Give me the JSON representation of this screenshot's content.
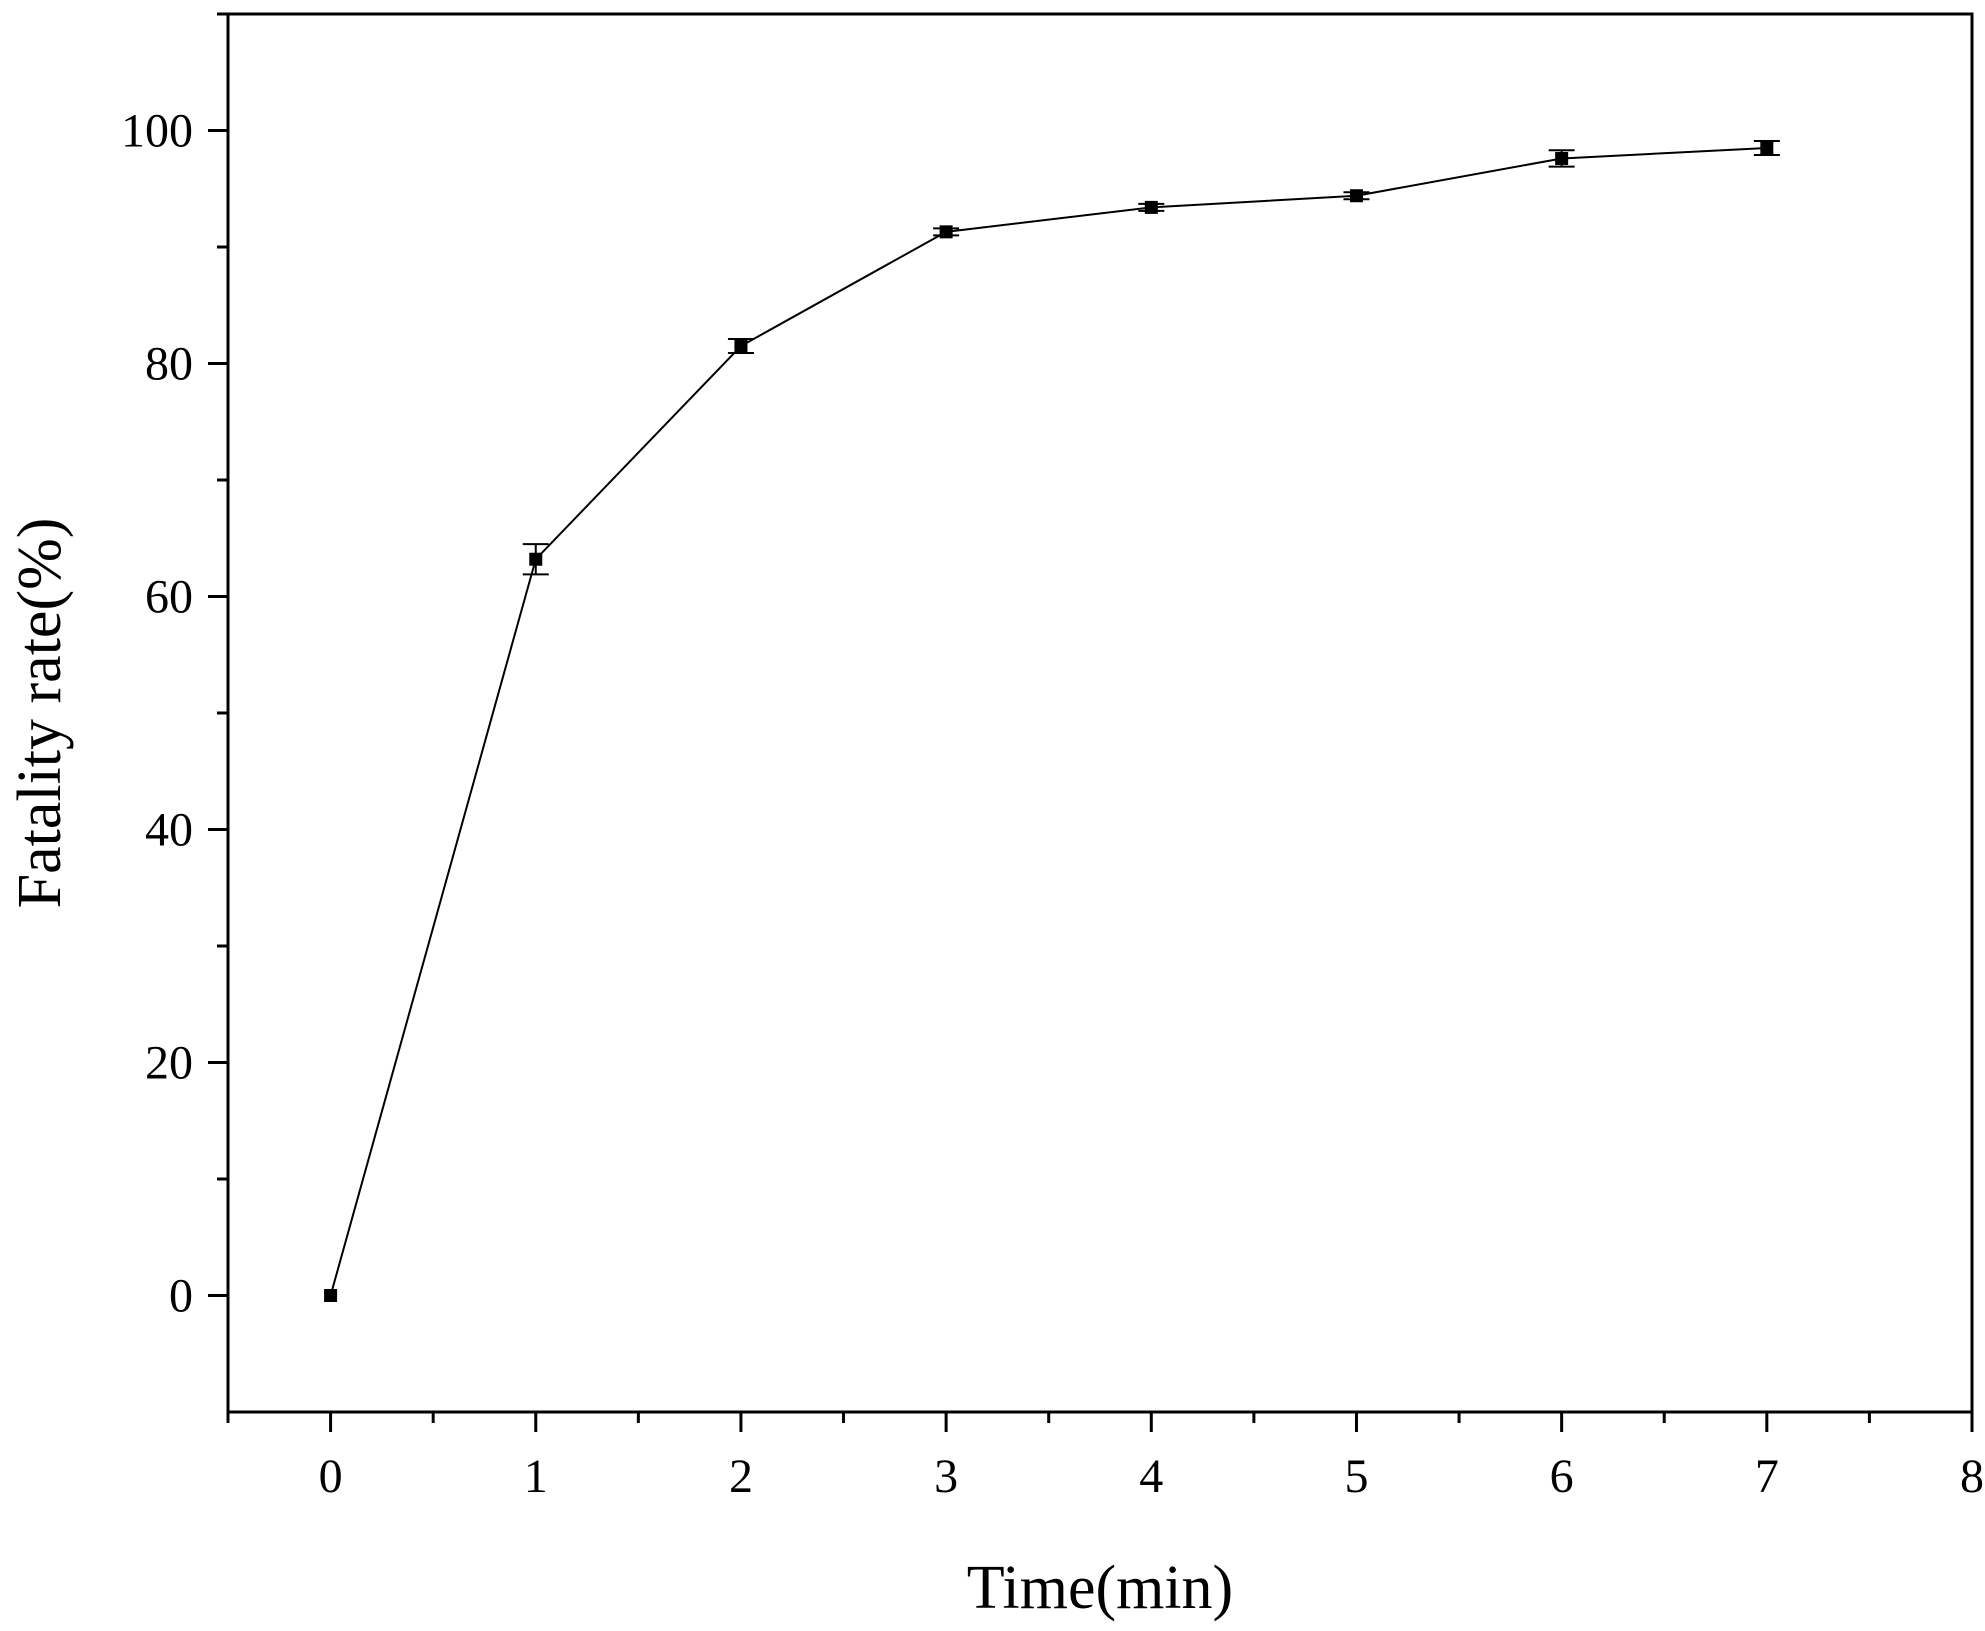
{
  "chart_data": {
    "type": "line",
    "title": "",
    "xlabel": "Time(min)",
    "ylabel": "Fatality rate(%)",
    "xlim": [
      -0.5,
      8
    ],
    "ylim": [
      -10,
      110
    ],
    "x_ticks": [
      0,
      1,
      2,
      3,
      4,
      5,
      6,
      7,
      8
    ],
    "x_tick_labels": [
      "0",
      "1",
      "2",
      "3",
      "4",
      "5",
      "6",
      "7",
      "8"
    ],
    "y_ticks": [
      0,
      20,
      40,
      60,
      80,
      100
    ],
    "y_tick_labels": [
      "0",
      "20",
      "40",
      "60",
      "80",
      "100"
    ],
    "grid": false,
    "legend": "none",
    "series": [
      {
        "x": [
          0,
          1,
          2,
          3,
          4,
          5,
          6,
          7
        ],
        "y": [
          0,
          63.2,
          81.5,
          91.3,
          93.4,
          94.4,
          97.6,
          98.5
        ],
        "error": [
          0,
          1.3,
          0.6,
          0.3,
          0.3,
          0.3,
          0.7,
          0.6
        ],
        "marker": "square",
        "color": "#000000"
      }
    ]
  }
}
